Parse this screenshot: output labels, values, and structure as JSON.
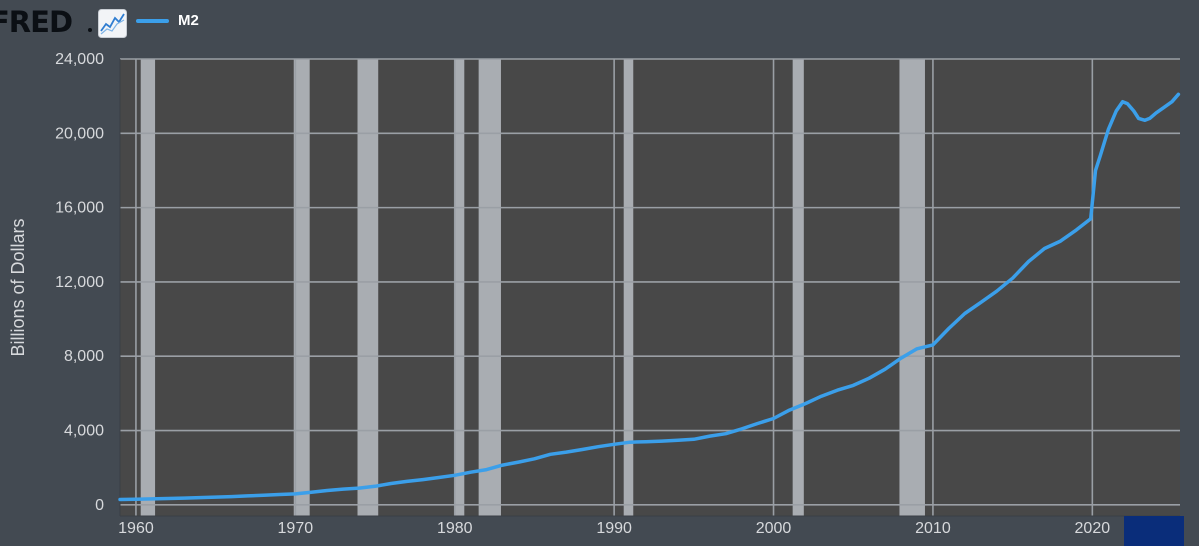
{
  "header": {
    "logo_text": "FRED",
    "logo_icon": "line-chart-icon"
  },
  "colors": {
    "background": "#434a52",
    "plot_background": "#484848",
    "grid": "#9a9fa5",
    "recession": "#a9adb2",
    "series": "#3b9fea",
    "text": "#d7d9dc",
    "corner_button": "#0a2d7a"
  },
  "chart_data": {
    "type": "line",
    "title": "",
    "xlabel": "",
    "ylabel": "Billions of Dollars",
    "xlim": [
      1959.0,
      2025.5
    ],
    "ylim": [
      -600,
      24000
    ],
    "x_ticks": [
      1960,
      1970,
      1980,
      1990,
      2000,
      2010,
      2020
    ],
    "x_tick_labels": [
      "1960",
      "1970",
      "1980",
      "1990",
      "2000",
      "2010",
      "2020"
    ],
    "y_ticks": [
      0,
      4000,
      8000,
      12000,
      16000,
      20000,
      24000
    ],
    "y_tick_labels": [
      "0",
      "4,000",
      "8,000",
      "12,000",
      "16,000",
      "20,000",
      "24,000"
    ],
    "grid": true,
    "legend": "top-left",
    "recessions": [
      [
        1960.3,
        1961.2
      ],
      [
        1969.9,
        1970.9
      ],
      [
        1973.9,
        1975.2
      ],
      [
        1980.0,
        1980.6
      ],
      [
        1981.5,
        1982.9
      ],
      [
        1990.6,
        1991.2
      ],
      [
        2001.2,
        2001.9
      ],
      [
        2007.9,
        2009.5
      ]
    ],
    "series": [
      {
        "name": "M2",
        "x": [
          1959,
          1960,
          1961,
          1962,
          1963,
          1964,
          1965,
          1966,
          1967,
          1968,
          1969,
          1970,
          1971,
          1972,
          1973,
          1974,
          1975,
          1976,
          1977,
          1978,
          1979,
          1980,
          1981,
          1982,
          1983,
          1984,
          1985,
          1986,
          1987,
          1988,
          1989,
          1990,
          1991,
          1992,
          1993,
          1994,
          1995,
          1996,
          1997,
          1998,
          1999,
          2000,
          2001,
          2002,
          2003,
          2004,
          2005,
          2006,
          2007,
          2008,
          2009,
          2010,
          2011,
          2012,
          2013,
          2014,
          2015,
          2016,
          2017,
          2018,
          2019,
          2019.9,
          2020.2,
          2020.5,
          2021.0,
          2021.5,
          2021.9,
          2022.2,
          2022.6,
          2022.9,
          2023.3,
          2023.6,
          2024.0,
          2024.5,
          2025.0,
          2025.4
        ],
        "y": [
          290,
          305,
          320,
          340,
          365,
          390,
          420,
          445,
          480,
          520,
          560,
          590,
          680,
          770,
          850,
          900,
          1000,
          1150,
          1260,
          1360,
          1470,
          1590,
          1760,
          1900,
          2140,
          2300,
          2480,
          2720,
          2840,
          2980,
          3130,
          3260,
          3370,
          3400,
          3430,
          3480,
          3530,
          3700,
          3830,
          4090,
          4380,
          4650,
          5100,
          5450,
          5850,
          6170,
          6430,
          6820,
          7300,
          7900,
          8400,
          8610,
          9500,
          10300,
          10900,
          11500,
          12200,
          13100,
          13800,
          14200,
          14800,
          15400,
          18000,
          18800,
          20200,
          21200,
          21700,
          21600,
          21200,
          20800,
          20700,
          20800,
          21100,
          21400,
          21700,
          22100
        ]
      }
    ]
  }
}
